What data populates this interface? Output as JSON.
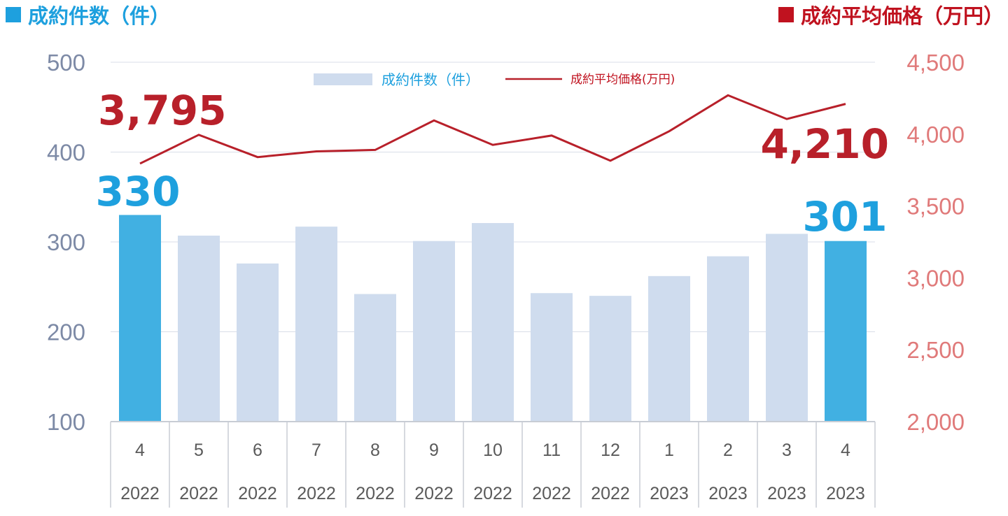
{
  "header": {
    "left_label": "成約件数（件）",
    "right_label": "成約平均価格（万円）",
    "left_color": "#1ea0de",
    "right_color": "#c0121f"
  },
  "legend": {
    "bar_label": "成約件数（件）",
    "line_label": "成約平均価格(万円)"
  },
  "callouts": {
    "first_count": "330",
    "last_count": "301",
    "first_price": "3,795",
    "last_price": "4,210"
  },
  "chart_data": {
    "type": "bar",
    "categories": [
      "4",
      "5",
      "6",
      "7",
      "8",
      "9",
      "10",
      "11",
      "12",
      "1",
      "2",
      "3",
      "4"
    ],
    "years": [
      "2022",
      "2022",
      "2022",
      "2022",
      "2022",
      "2022",
      "2022",
      "2022",
      "2022",
      "2023",
      "2023",
      "2023",
      "2023"
    ],
    "series": [
      {
        "name": "成約件数（件）",
        "type": "bar",
        "axis": "left",
        "values": [
          330,
          307,
          276,
          317,
          242,
          301,
          321,
          243,
          240,
          262,
          284,
          309,
          301
        ],
        "color": "#cfdcee",
        "highlight_color": "#41b0e2",
        "highlight_indices": [
          0,
          12
        ]
      },
      {
        "name": "成約平均価格(万円)",
        "type": "line",
        "axis": "right",
        "values": [
          3795,
          3995,
          3840,
          3880,
          3890,
          4095,
          3925,
          3990,
          3815,
          4020,
          4270,
          4105,
          4210
        ],
        "color": "#b8202a"
      }
    ],
    "y_left": {
      "ylim": [
        100,
        500
      ],
      "ticks": [
        "100",
        "200",
        "300",
        "400",
        "500"
      ]
    },
    "y_right": {
      "ylim": [
        2000,
        4500
      ],
      "ticks": [
        "2,000",
        "2,500",
        "3,000",
        "3,500",
        "4,000",
        "4,500"
      ]
    },
    "grid": true,
    "legend_position": "top-center"
  }
}
